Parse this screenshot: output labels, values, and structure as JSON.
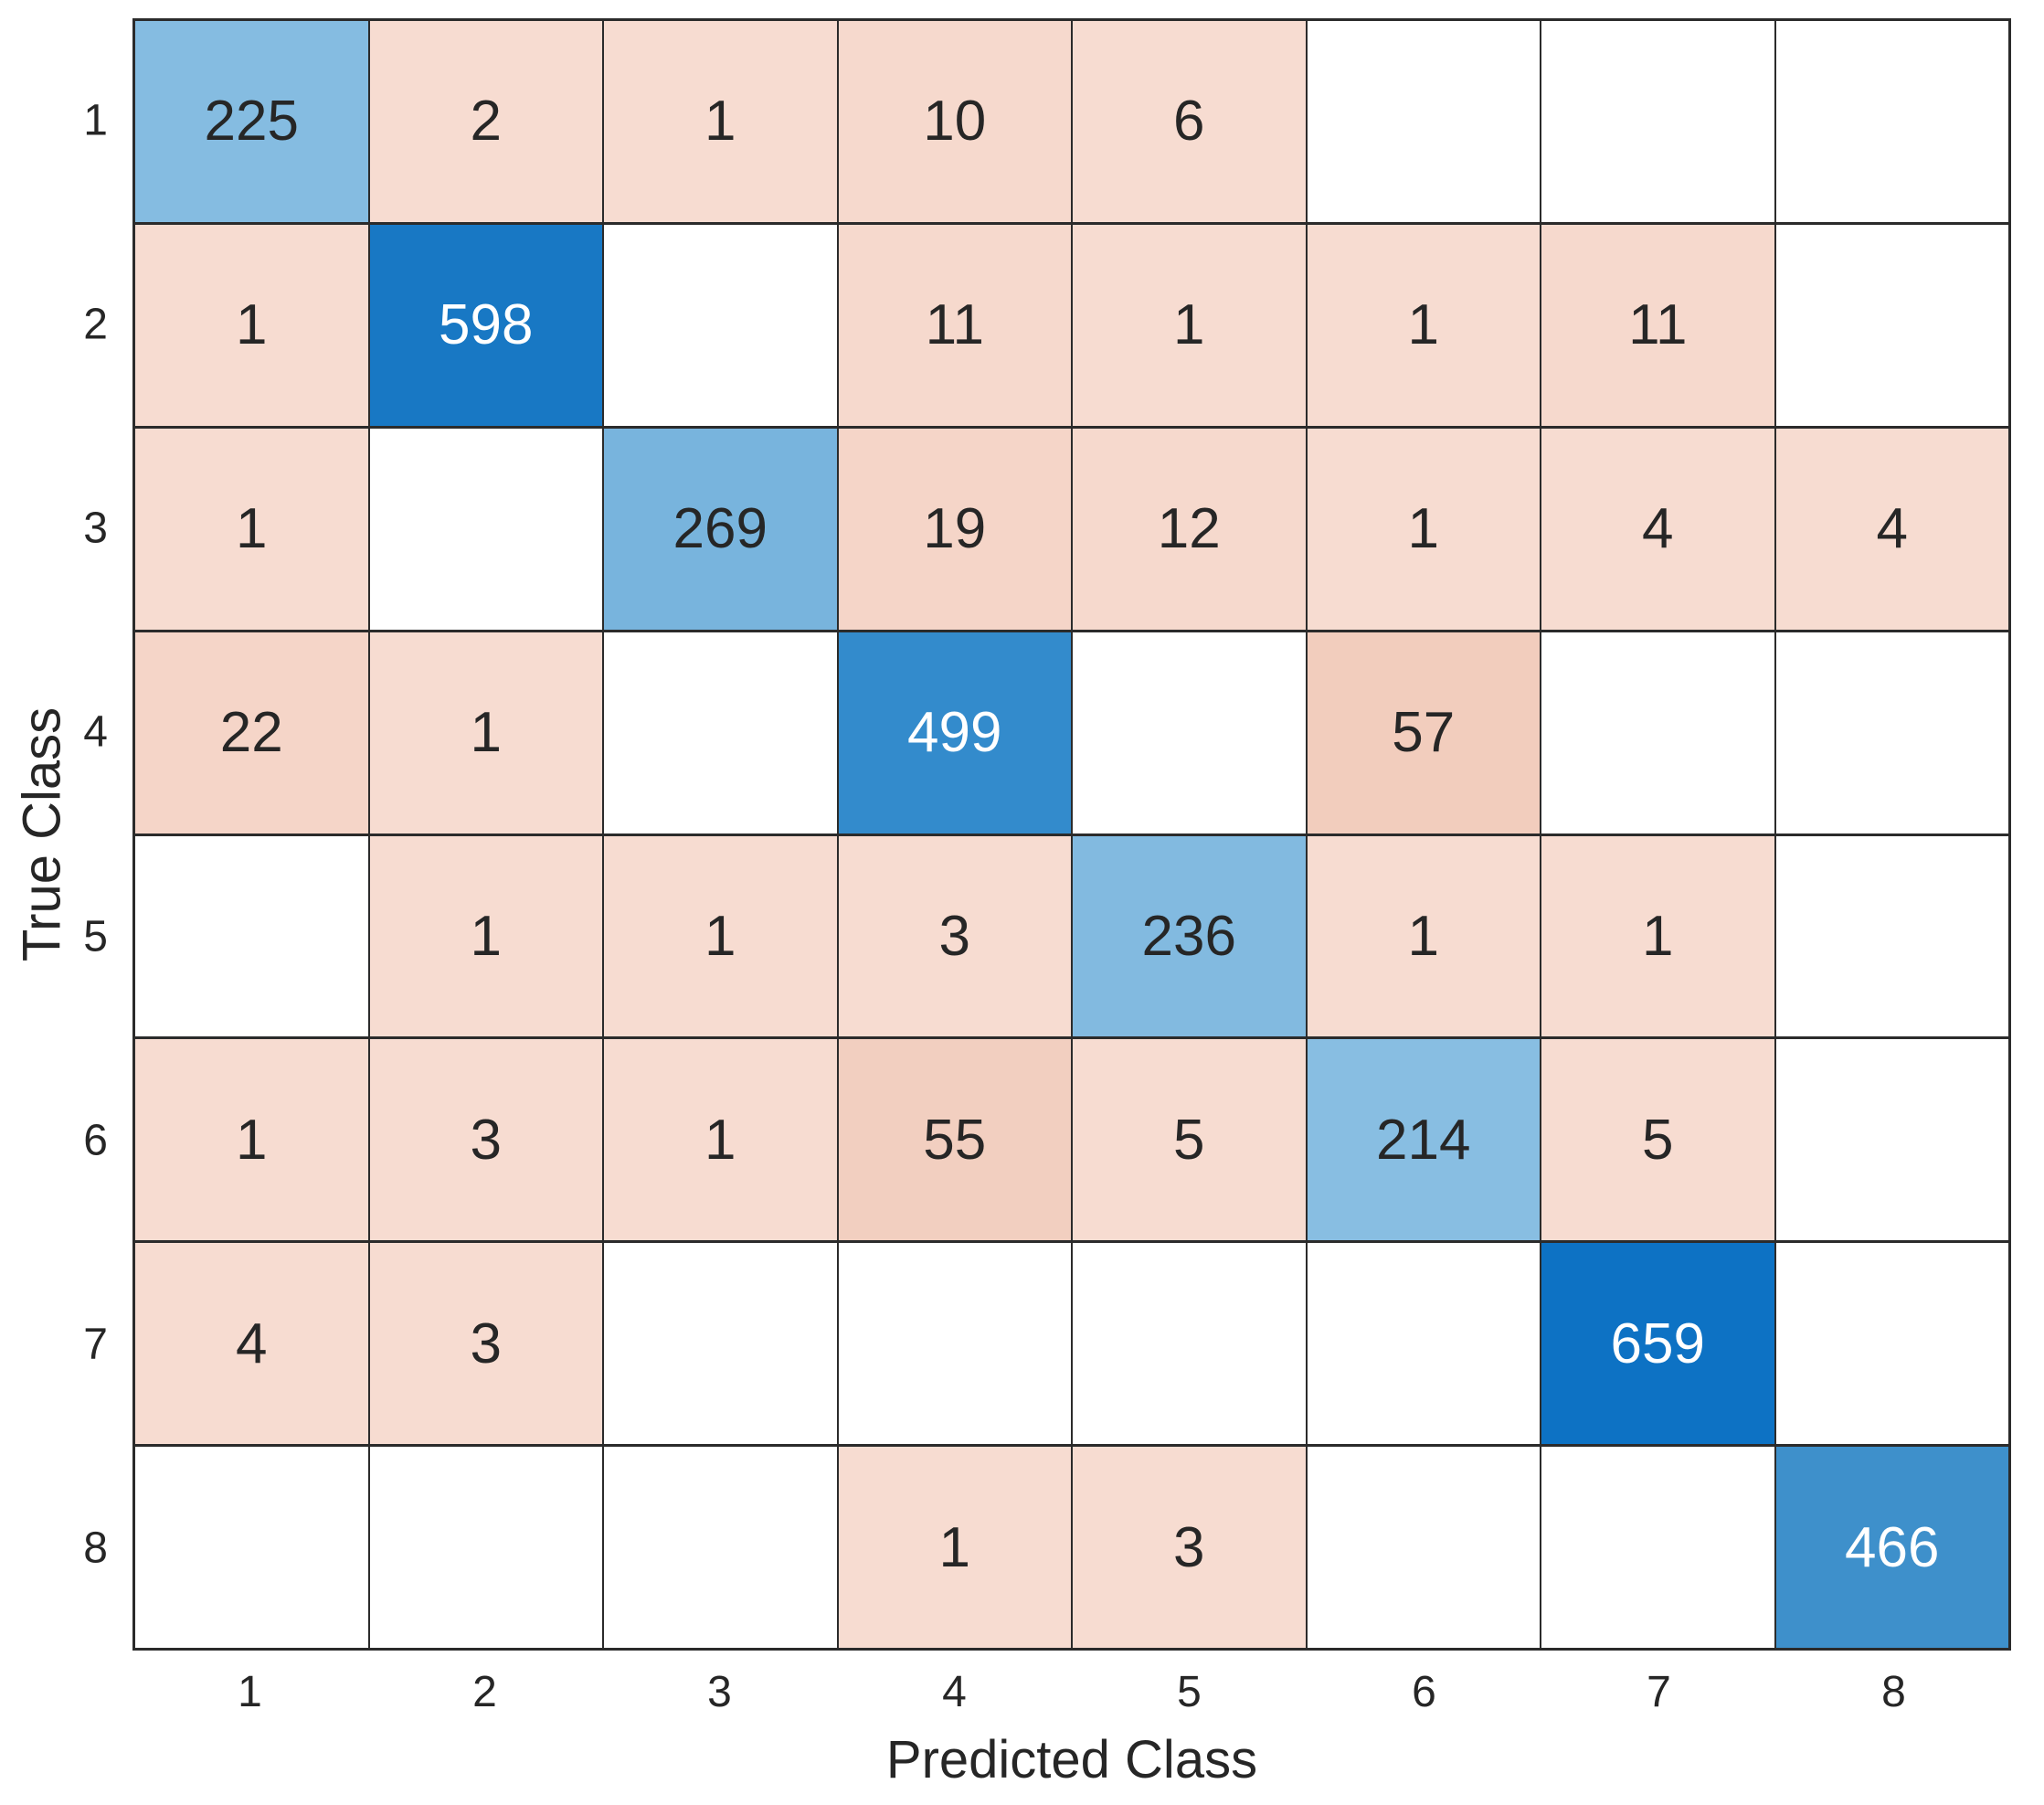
{
  "chart_data": {
    "type": "heatmap",
    "subtype": "confusion-matrix",
    "title": "",
    "xlabel": "Predicted Class",
    "ylabel": "True Class",
    "x_tick_labels": [
      "1",
      "2",
      "3",
      "4",
      "5",
      "6",
      "7",
      "8"
    ],
    "y_tick_labels": [
      "1",
      "2",
      "3",
      "4",
      "5",
      "6",
      "7",
      "8"
    ],
    "zero_shown_as_blank": true,
    "matrix": [
      [
        225,
        2,
        1,
        10,
        6,
        0,
        0,
        0
      ],
      [
        1,
        598,
        0,
        11,
        1,
        1,
        11,
        0
      ],
      [
        1,
        0,
        269,
        19,
        12,
        1,
        4,
        4
      ],
      [
        22,
        1,
        0,
        499,
        0,
        57,
        0,
        0
      ],
      [
        0,
        1,
        1,
        3,
        236,
        1,
        1,
        0
      ],
      [
        1,
        3,
        1,
        55,
        5,
        214,
        5,
        0
      ],
      [
        4,
        3,
        0,
        0,
        0,
        0,
        659,
        0
      ],
      [
        0,
        0,
        0,
        1,
        3,
        0,
        0,
        466
      ]
    ],
    "cell_colors": [
      [
        "#85bce1",
        "#f7dcd1",
        "#f7dcd1",
        "#f6d9cd",
        "#f7dcd1",
        "#ffffff",
        "#ffffff",
        "#ffffff"
      ],
      [
        "#f7dcd1",
        "#1878c4",
        "#ffffff",
        "#f6d9cd",
        "#f7dcd1",
        "#f7dcd1",
        "#f6d9cd",
        "#ffffff"
      ],
      [
        "#f7dcd1",
        "#ffffff",
        "#78b4dd",
        "#f5d5c8",
        "#f6d9cd",
        "#f7dcd1",
        "#f7dcd1",
        "#f7dcd1"
      ],
      [
        "#f5d5c8",
        "#f7dcd1",
        "#ffffff",
        "#338bcc",
        "#ffffff",
        "#f2cdbd",
        "#ffffff",
        "#ffffff"
      ],
      [
        "#ffffff",
        "#f7dcd1",
        "#f7dcd1",
        "#f7dcd1",
        "#82bae0",
        "#f7dcd1",
        "#f7dcd1",
        "#ffffff"
      ],
      [
        "#f7dcd1",
        "#f7dcd1",
        "#f7dcd1",
        "#f2cfc0",
        "#f7dcd1",
        "#88bee2",
        "#f7dcd1",
        "#ffffff"
      ],
      [
        "#f7dcd1",
        "#f7dcd1",
        "#ffffff",
        "#ffffff",
        "#ffffff",
        "#ffffff",
        "#0d72c4",
        "#ffffff"
      ],
      [
        "#ffffff",
        "#ffffff",
        "#ffffff",
        "#f7dcd1",
        "#f7dcd1",
        "#ffffff",
        "#ffffff",
        "#3e90cb"
      ]
    ],
    "colors": {
      "diagonal_max": "#0d72c4",
      "diagonal_min": "#85bce1",
      "off_diagonal_max": "#f2cdbd",
      "off_diagonal_min": "#f7dcd1",
      "grid_lines": "#2b2b2b",
      "text_dark": "#262626",
      "text_light": "#ffffff",
      "background": "#ffffff"
    },
    "white_text_threshold": 300,
    "legend": "none",
    "grid": "on"
  }
}
